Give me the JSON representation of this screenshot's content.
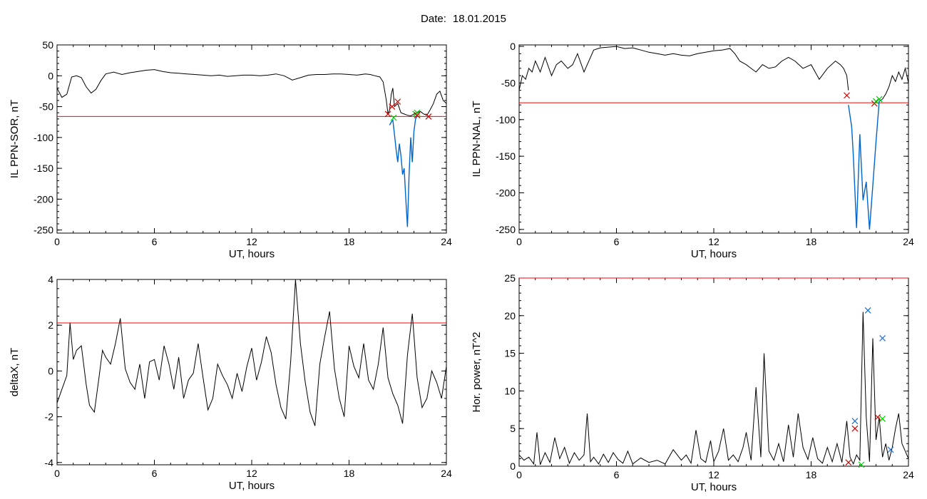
{
  "header": {
    "date_label": "Date:",
    "date_value": "18.01.2015"
  },
  "colors": {
    "trace": "#000000",
    "threshold": "#ff0000",
    "event_trace": "#0066cc",
    "marker_red": "#cc0000",
    "marker_green": "#00cc00",
    "marker_blue": "#1a6fdc"
  },
  "chart_data": [
    {
      "id": "sor",
      "type": "line",
      "ylabel": "IL PPN-SOR, nT",
      "xlabel": "UT, hours",
      "xlim": [
        0,
        24
      ],
      "ylim": [
        -255,
        50
      ],
      "xticks": [
        0,
        6,
        12,
        18,
        24
      ],
      "yticks": [
        50,
        0,
        -50,
        -100,
        -150,
        -200,
        -250
      ],
      "threshold": -66,
      "series": [
        {
          "role": "main",
          "color": "#000000",
          "x": [
            0,
            0.3,
            0.6,
            0.9,
            1.2,
            1.5,
            1.8,
            2.1,
            2.4,
            2.7,
            3,
            3.5,
            4,
            4.5,
            5,
            5.5,
            6,
            6.5,
            7,
            7.5,
            8,
            8.5,
            9,
            9.5,
            10,
            10.5,
            11,
            11.5,
            12,
            12.5,
            13,
            13.5,
            14,
            14.5,
            15,
            15.5,
            16,
            16.5,
            17,
            17.5,
            18,
            18.5,
            19,
            19.3,
            19.6,
            19.9,
            20.1,
            20.3,
            20.4,
            20.5,
            20.6,
            20.7,
            20.8,
            21,
            21.2,
            21.4,
            21.6,
            21.8,
            22,
            22.2,
            22.4,
            22.6,
            22.8,
            23,
            23.2,
            23.4,
            23.6,
            23.8,
            24
          ],
          "y": [
            -20,
            -35,
            -30,
            -2,
            0,
            -3,
            -18,
            -28,
            -22,
            -8,
            3,
            6,
            2,
            5,
            7,
            9,
            10,
            7,
            5,
            4,
            3,
            2,
            1,
            0,
            1,
            -1,
            0,
            1,
            1,
            0,
            1,
            3,
            0,
            -7,
            -3,
            1,
            2,
            2,
            3,
            3,
            2,
            1,
            3,
            2,
            0,
            -2,
            -10,
            -40,
            -62,
            -55,
            -30,
            -20,
            -50,
            -45,
            -60,
            -62,
            -64,
            -65,
            -62,
            -60,
            -58,
            -62,
            -64,
            -55,
            -45,
            -30,
            -25,
            -40,
            -45
          ]
        },
        {
          "role": "event",
          "color": "#0066cc",
          "x": [
            20.5,
            20.6,
            20.7,
            20.8,
            20.9,
            21,
            21.1,
            21.2,
            21.3,
            21.4,
            21.5,
            21.6,
            21.7,
            21.8,
            21.9,
            22,
            22.1,
            22.2
          ],
          "y": [
            -80,
            -75,
            -72,
            -95,
            -120,
            -140,
            -110,
            -130,
            -160,
            -150,
            -200,
            -245,
            -160,
            -100,
            -140,
            -90,
            -70,
            -65
          ]
        }
      ],
      "markers": [
        {
          "x": 20.4,
          "y": -62,
          "color": "#cc0000"
        },
        {
          "x": 20.65,
          "y": -50,
          "color": "#cc0000"
        },
        {
          "x": 21.0,
          "y": -42,
          "color": "#cc0000"
        },
        {
          "x": 20.75,
          "y": -68,
          "color": "#00cc00"
        },
        {
          "x": 22.1,
          "y": -62,
          "color": "#00cc00"
        },
        {
          "x": 22.2,
          "y": -60,
          "color": "#00cc00"
        },
        {
          "x": 22.2,
          "y": -64,
          "color": "#cc0000"
        },
        {
          "x": 22.9,
          "y": -66,
          "color": "#cc0000"
        }
      ]
    },
    {
      "id": "nal",
      "type": "line",
      "ylabel": "IL PPN-NAL, nT",
      "xlabel": "UT, hours",
      "xlim": [
        0,
        24
      ],
      "ylim": [
        -255,
        2
      ],
      "xticks": [
        0,
        6,
        12,
        18,
        24
      ],
      "yticks": [
        0,
        -50,
        -100,
        -150,
        -200,
        -250
      ],
      "threshold": -77,
      "series": [
        {
          "role": "main",
          "color": "#000000",
          "x": [
            0,
            0.2,
            0.4,
            0.6,
            0.8,
            1,
            1.3,
            1.6,
            2,
            2.3,
            2.6,
            3,
            3.3,
            3.6,
            4,
            4.3,
            4.6,
            5,
            5.5,
            6,
            6.5,
            7,
            7.5,
            8,
            8.5,
            9,
            9.5,
            10,
            10.5,
            11,
            11.5,
            12,
            12.5,
            13,
            13.3,
            13.6,
            14,
            14.3,
            14.6,
            15,
            15.4,
            15.8,
            16.2,
            16.6,
            17,
            17.5,
            18,
            18.5,
            19,
            19.5,
            19.8,
            20,
            20.2,
            20.3
          ],
          "y": [
            -60,
            -40,
            -45,
            -30,
            -35,
            -20,
            -35,
            -15,
            -40,
            -25,
            -20,
            -30,
            -25,
            -10,
            -35,
            -20,
            -5,
            -2,
            -1,
            0,
            -3,
            -2,
            -5,
            -8,
            -10,
            -12,
            -10,
            -12,
            -13,
            -10,
            -8,
            -6,
            -5,
            -3,
            -10,
            -20,
            -25,
            -30,
            -35,
            -25,
            -30,
            -28,
            -20,
            -15,
            -20,
            -30,
            -25,
            -45,
            -30,
            -20,
            -25,
            -30,
            -40,
            -60
          ]
        },
        {
          "role": "event",
          "color": "#0066cc",
          "x": [
            20.3,
            20.5,
            20.6,
            20.8,
            21,
            21.2,
            21.4,
            21.6,
            21.8,
            22,
            22.2,
            22.4
          ],
          "y": [
            -80,
            -110,
            -150,
            -248,
            -120,
            -210,
            -185,
            -250,
            -190,
            -130,
            -75,
            -72
          ]
        },
        {
          "role": "recovery",
          "color": "#000000",
          "x": [
            22.4,
            22.6,
            22.8,
            23,
            23.2,
            23.4,
            23.6,
            23.8,
            24
          ],
          "y": [
            -72,
            -65,
            -55,
            -40,
            -48,
            -35,
            -45,
            -30,
            -50
          ]
        }
      ],
      "markers": [
        {
          "x": 20.2,
          "y": -67,
          "color": "#cc0000"
        },
        {
          "x": 21.9,
          "y": -78,
          "color": "#cc0000"
        },
        {
          "x": 22.0,
          "y": -75,
          "color": "#00cc00"
        },
        {
          "x": 22.2,
          "y": -72,
          "color": "#00cc00"
        }
      ]
    },
    {
      "id": "deltax",
      "type": "line",
      "ylabel": "deltaX, nT",
      "xlabel": "UT, hours",
      "xlim": [
        0,
        24
      ],
      "ylim": [
        -4.1,
        4
      ],
      "xticks": [
        0,
        6,
        12,
        18,
        24
      ],
      "yticks": [
        4,
        2,
        0,
        -2,
        -4
      ],
      "threshold": 2.1,
      "series": [
        {
          "role": "main",
          "color": "#000000",
          "x": [
            0,
            0.3,
            0.6,
            0.8,
            1,
            1.2,
            1.5,
            1.8,
            2,
            2.3,
            2.6,
            2.8,
            3,
            3.3,
            3.6,
            3.9,
            4.2,
            4.5,
            4.8,
            5.1,
            5.4,
            5.7,
            6,
            6.3,
            6.6,
            6.9,
            7.2,
            7.5,
            7.8,
            8.1,
            8.4,
            8.7,
            9,
            9.3,
            9.6,
            9.9,
            10.2,
            10.5,
            10.8,
            11.1,
            11.4,
            11.7,
            12,
            12.3,
            12.6,
            12.9,
            13.2,
            13.5,
            13.8,
            14.1,
            14.4,
            14.7,
            15,
            15.3,
            15.6,
            15.9,
            16.2,
            16.5,
            16.8,
            17.1,
            17.4,
            17.7,
            18,
            18.3,
            18.6,
            18.9,
            19.2,
            19.5,
            19.8,
            20.1,
            20.4,
            20.7,
            21,
            21.3,
            21.6,
            21.9,
            22.2,
            22.5,
            22.8,
            23.1,
            23.4,
            23.7,
            24
          ],
          "y": [
            -1.4,
            -0.8,
            -0.2,
            2.1,
            0.5,
            0.9,
            1.1,
            -0.6,
            -1.5,
            -1.8,
            -0.2,
            0.9,
            0.6,
            0.3,
            1.2,
            2.3,
            0.1,
            -0.5,
            -0.8,
            0.3,
            -1.2,
            0.4,
            0.5,
            -0.4,
            1.1,
            0.3,
            -0.8,
            0.6,
            -1.2,
            -0.4,
            -0.1,
            1.2,
            -0.3,
            -1.7,
            -1.2,
            0.3,
            -0.2,
            -0.6,
            -1.2,
            -0.1,
            -0.9,
            0.2,
            1.0,
            -0.4,
            0.4,
            1.5,
            0.8,
            -0.6,
            -1.6,
            -2.1,
            0.4,
            4.0,
            1.2,
            -0.5,
            -1.8,
            -2.4,
            0.3,
            1.5,
            2.6,
            0.1,
            -1.2,
            -2.0,
            1.1,
            0.2,
            -0.3,
            1.2,
            -0.4,
            -0.8,
            0.3,
            1.9,
            -0.3,
            -1.0,
            -1.5,
            -2.3,
            0.7,
            2.5,
            -0.3,
            -1.6,
            -1.2,
            0.0,
            -0.5,
            -1.2,
            0.2
          ]
        }
      ],
      "markers": []
    },
    {
      "id": "power",
      "type": "line",
      "ylabel": "Hor. power, nT^2",
      "xlabel": "UT, hours",
      "xlim": [
        0,
        24
      ],
      "ylim": [
        0,
        25
      ],
      "xticks": [
        0,
        6,
        12,
        18,
        24
      ],
      "yticks": [
        25,
        20,
        15,
        10,
        5,
        0
      ],
      "threshold": 25,
      "series": [
        {
          "role": "main",
          "color": "#000000",
          "x": [
            0,
            0.3,
            0.6,
            0.9,
            1.1,
            1.3,
            1.6,
            1.9,
            2.2,
            2.5,
            2.8,
            3.1,
            3.4,
            3.7,
            4,
            4.2,
            4.4,
            4.6,
            4.9,
            5.2,
            5.5,
            5.8,
            6.1,
            6.4,
            6.7,
            7,
            7.5,
            8,
            8.5,
            9,
            9.5,
            10,
            10.3,
            10.6,
            10.9,
            11.2,
            11.5,
            11.8,
            12,
            12.3,
            12.6,
            12.9,
            13.2,
            13.5,
            13.8,
            14,
            14.3,
            14.6,
            14.9,
            15.1,
            15.4,
            15.7,
            16,
            16.3,
            16.6,
            16.9,
            17.2,
            17.5,
            17.8,
            18.1,
            18.4,
            18.7,
            19,
            19.3,
            19.6,
            19.9,
            20.2,
            20.4,
            20.6,
            20.8,
            21,
            21.2,
            21.4,
            21.6,
            21.8,
            22,
            22.2,
            22.4,
            22.6,
            22.8,
            23,
            23.2,
            23.4,
            23.6,
            23.8,
            24
          ],
          "y": [
            1.5,
            0.8,
            1.2,
            0.3,
            4.5,
            0.2,
            1.8,
            0.5,
            3.8,
            1.0,
            2.5,
            0.4,
            1.8,
            0.8,
            1.5,
            7.0,
            0.6,
            1.2,
            0.3,
            1.6,
            0.5,
            1.8,
            0.9,
            0.4,
            2.0,
            0.3,
            1.1,
            0.5,
            0.8,
            0.3,
            2.2,
            0.8,
            1.5,
            0.4,
            4.8,
            1.0,
            0.5,
            3.4,
            0.6,
            2.0,
            5.0,
            0.8,
            1.5,
            0.6,
            2.5,
            4.5,
            0.8,
            10.5,
            1.2,
            15.0,
            2.0,
            0.8,
            3.0,
            0.6,
            5.5,
            1.2,
            7.0,
            2.5,
            0.9,
            3.8,
            1.0,
            0.4,
            2.5,
            0.6,
            3.0,
            0.5,
            6.0,
            1.2,
            0.3,
            1.5,
            0.8,
            20.5,
            6.5,
            0.6,
            17.0,
            3.5,
            6.5,
            1.2,
            3.0,
            0.8,
            2.5,
            5.0,
            7.0,
            3.0,
            2.0,
            1.0
          ]
        }
      ],
      "markers": [
        {
          "x": 20.3,
          "y": 0.5,
          "color": "#cc0000"
        },
        {
          "x": 20.7,
          "y": 5.0,
          "color": "#cc0000"
        },
        {
          "x": 20.7,
          "y": 6.0,
          "color": "#1a6fdc"
        },
        {
          "x": 21.1,
          "y": 0.2,
          "color": "#00cc00"
        },
        {
          "x": 21.5,
          "y": 20.7,
          "color": "#1a6fdc"
        },
        {
          "x": 22.1,
          "y": 6.5,
          "color": "#cc0000"
        },
        {
          "x": 22.4,
          "y": 17.0,
          "color": "#1a6fdc"
        },
        {
          "x": 22.4,
          "y": 6.3,
          "color": "#00cc00"
        },
        {
          "x": 22.9,
          "y": 2.2,
          "color": "#1a6fdc"
        }
      ]
    }
  ]
}
